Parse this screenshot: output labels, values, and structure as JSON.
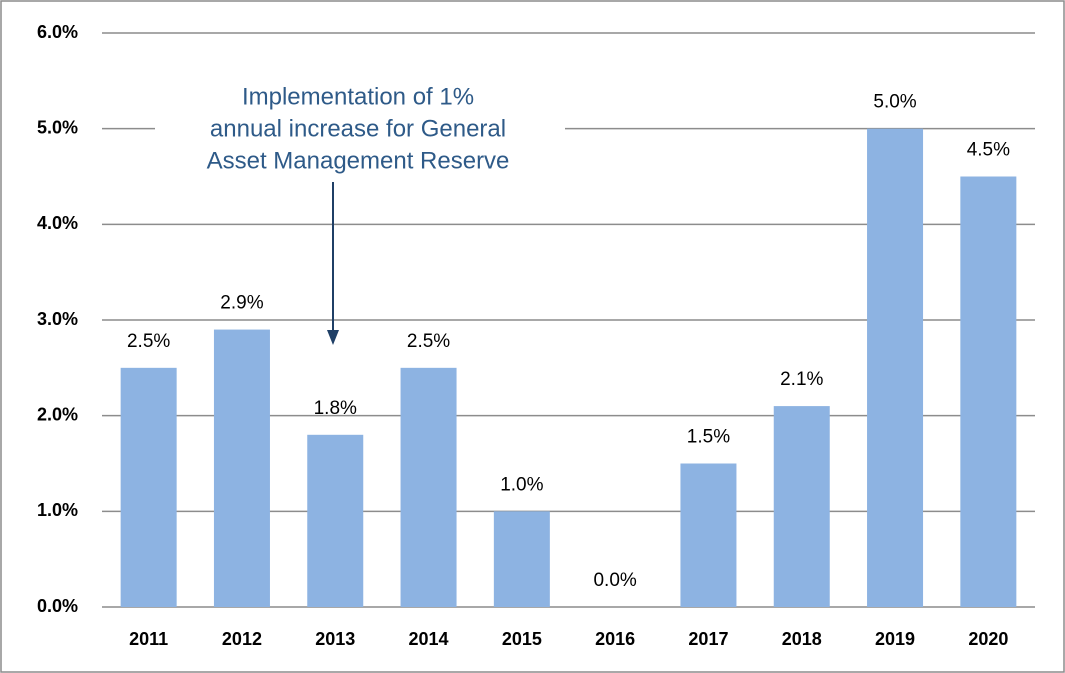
{
  "chart_data": {
    "type": "bar",
    "categories": [
      "2011",
      "2012",
      "2013",
      "2014",
      "2015",
      "2016",
      "2017",
      "2018",
      "2019",
      "2020"
    ],
    "values": [
      2.5,
      2.9,
      1.8,
      2.5,
      1.0,
      0.0,
      1.5,
      2.1,
      5.0,
      4.5
    ],
    "value_labels": [
      "2.5%",
      "2.9%",
      "1.8%",
      "2.5%",
      "1.0%",
      "0.0%",
      "1.5%",
      "2.1%",
      "5.0%",
      "4.5%"
    ],
    "color": "#8db3e2",
    "ylim": [
      0,
      6
    ],
    "yticks": [
      {
        "value": 0,
        "label": "0.0%"
      },
      {
        "value": 1,
        "label": "1.0%"
      },
      {
        "value": 2,
        "label": "2.0%"
      },
      {
        "value": 3,
        "label": "3.0%"
      },
      {
        "value": 4,
        "label": "4.0%"
      },
      {
        "value": 5,
        "label": "5.0%"
      },
      {
        "value": 6,
        "label": "6.0%"
      }
    ],
    "grid": true,
    "annotation": [
      "Implementation  of 1%",
      "annual increase for General",
      "Asset Management  Reserve"
    ]
  }
}
